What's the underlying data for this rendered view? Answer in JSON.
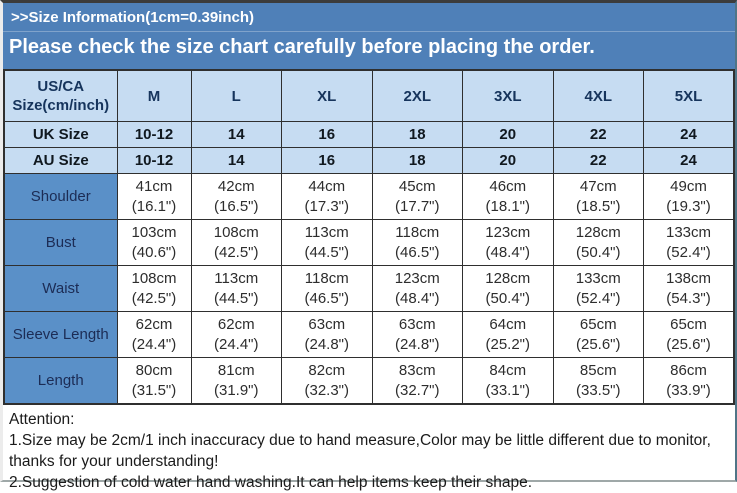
{
  "banner": {
    "title": ">>Size Information(1cm=0.39inch)",
    "subtitle": "Please check the size chart carefully before placing the order."
  },
  "colors": {
    "banner_bg": "#4f80b8",
    "header_row_bg": "#c6dcf2",
    "label_column_bg": "#5a90c8",
    "header_text": "#16345c",
    "cell_border": "#2f2f2f"
  },
  "chart_data": {
    "type": "table",
    "columns": [
      "US/CA\nSize(cm/inch)",
      "M",
      "L",
      "XL",
      "2XL",
      "3XL",
      "4XL",
      "5XL"
    ],
    "rows": [
      {
        "label": "UK Size",
        "style": "size",
        "cells": [
          "10-12",
          "14",
          "16",
          "18",
          "20",
          "22",
          "24"
        ]
      },
      {
        "label": "AU Size",
        "style": "size",
        "cells": [
          "10-12",
          "14",
          "16",
          "18",
          "20",
          "22",
          "24"
        ]
      },
      {
        "label": "Shoulder",
        "style": "measure",
        "cells": [
          "41cm\n(16.1\")",
          "42cm\n(16.5\")",
          "44cm\n(17.3\")",
          "45cm\n(17.7\")",
          "46cm\n(18.1\")",
          "47cm\n(18.5\")",
          "49cm\n(19.3\")"
        ]
      },
      {
        "label": "Bust",
        "style": "measure",
        "cells": [
          "103cm\n(40.6\")",
          "108cm\n(42.5\")",
          "113cm\n(44.5\")",
          "118cm\n(46.5\")",
          "123cm\n(48.4\")",
          "128cm\n(50.4\")",
          "133cm\n(52.4\")"
        ]
      },
      {
        "label": "Waist",
        "style": "measure",
        "cells": [
          "108cm\n(42.5\")",
          "113cm\n(44.5\")",
          "118cm\n(46.5\")",
          "123cm\n(48.4\")",
          "128cm\n(50.4\")",
          "133cm\n(52.4\")",
          "138cm\n(54.3\")"
        ]
      },
      {
        "label": "Sleeve Length",
        "style": "measure",
        "cells": [
          "62cm\n(24.4\")",
          "62cm\n(24.4\")",
          "63cm\n(24.8\")",
          "63cm\n(24.8\")",
          "64cm\n(25.2\")",
          "65cm\n(25.6\")",
          "65cm\n(25.6\")"
        ]
      },
      {
        "label": "Length",
        "style": "measure",
        "cells": [
          "80cm\n(31.5\")",
          "81cm\n(31.9\")",
          "82cm\n(32.3\")",
          "83cm\n(32.7\")",
          "84cm\n(33.1\")",
          "85cm\n(33.5\")",
          "86cm\n(33.9\")"
        ]
      }
    ]
  },
  "notes": {
    "heading": "Attention:",
    "note1": "1.Size may be 2cm/1 inch inaccuracy due to hand measure,Color may be little different due to monitor, thanks for your understanding!",
    "note2": "2.Suggestion of cold water hand washing.It can help items keep their shape."
  }
}
